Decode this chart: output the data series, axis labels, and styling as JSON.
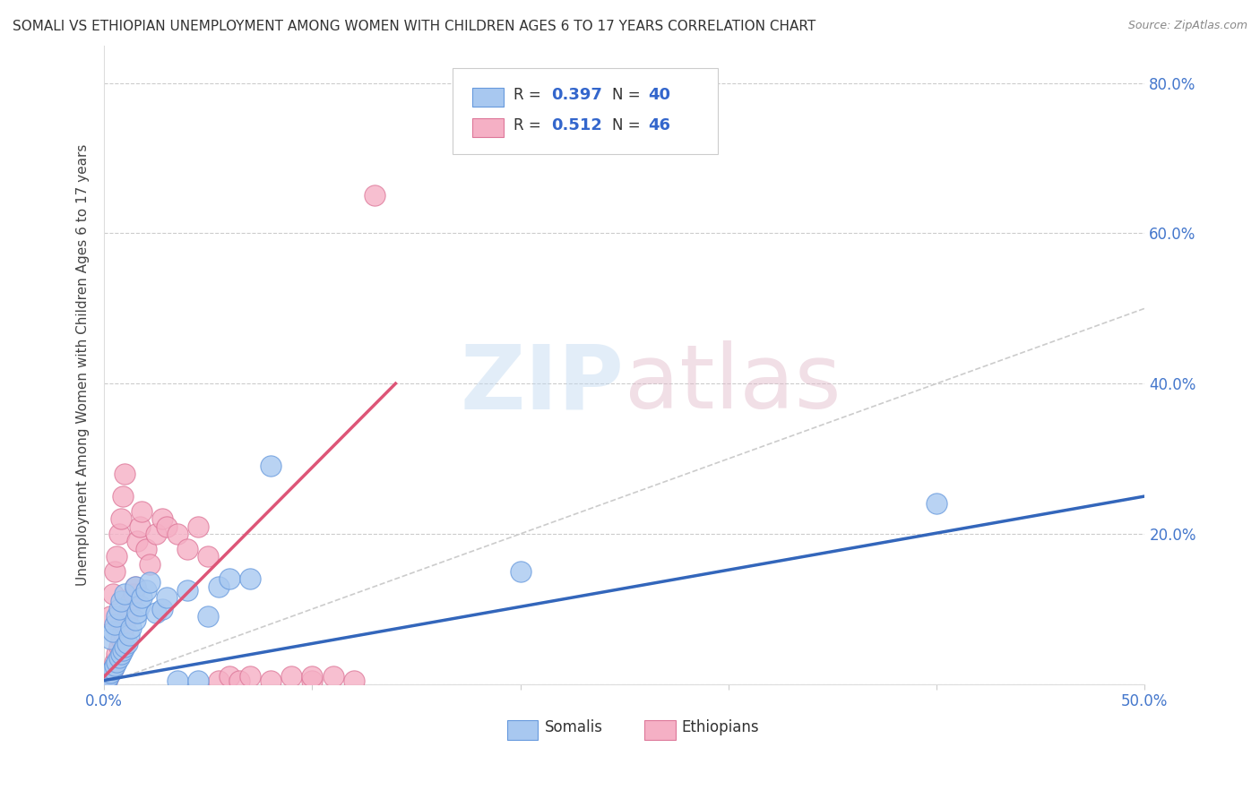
{
  "title": "SOMALI VS ETHIOPIAN UNEMPLOYMENT AMONG WOMEN WITH CHILDREN AGES 6 TO 17 YEARS CORRELATION CHART",
  "source": "Source: ZipAtlas.com",
  "ylabel": "Unemployment Among Women with Children Ages 6 to 17 years",
  "xlim": [
    0.0,
    0.5
  ],
  "ylim": [
    0.0,
    0.85
  ],
  "xticks": [
    0.0,
    0.1,
    0.2,
    0.3,
    0.4,
    0.5
  ],
  "xtick_labels": [
    "0.0%",
    "",
    "",
    "",
    "",
    "50.0%"
  ],
  "yticks": [
    0.0,
    0.2,
    0.4,
    0.6,
    0.8
  ],
  "ytick_labels_right": [
    "",
    "20.0%",
    "40.0%",
    "60.0%",
    "80.0%"
  ],
  "somali_color": "#a8c8f0",
  "somali_edge_color": "#6699dd",
  "somali_line_color": "#3366bb",
  "ethiopian_color": "#f5b0c5",
  "ethiopian_edge_color": "#dd7799",
  "ethiopian_line_color": "#dd5577",
  "ref_line_color": "#cccccc",
  "background_color": "#ffffff",
  "somali_x": [
    0.001,
    0.002,
    0.003,
    0.003,
    0.004,
    0.004,
    0.005,
    0.005,
    0.006,
    0.006,
    0.007,
    0.007,
    0.008,
    0.008,
    0.009,
    0.01,
    0.01,
    0.011,
    0.012,
    0.013,
    0.015,
    0.015,
    0.016,
    0.017,
    0.018,
    0.02,
    0.022,
    0.025,
    0.028,
    0.03,
    0.035,
    0.04,
    0.045,
    0.05,
    0.055,
    0.06,
    0.07,
    0.08,
    0.2,
    0.4
  ],
  "somali_y": [
    0.005,
    0.01,
    0.015,
    0.06,
    0.02,
    0.07,
    0.025,
    0.08,
    0.03,
    0.09,
    0.035,
    0.1,
    0.04,
    0.11,
    0.045,
    0.05,
    0.12,
    0.055,
    0.065,
    0.075,
    0.085,
    0.13,
    0.095,
    0.105,
    0.115,
    0.125,
    0.135,
    0.095,
    0.1,
    0.115,
    0.005,
    0.125,
    0.005,
    0.09,
    0.13,
    0.14,
    0.14,
    0.29,
    0.15,
    0.24
  ],
  "ethiopian_x": [
    0.001,
    0.002,
    0.003,
    0.003,
    0.004,
    0.004,
    0.005,
    0.005,
    0.006,
    0.006,
    0.007,
    0.007,
    0.008,
    0.008,
    0.009,
    0.009,
    0.01,
    0.01,
    0.011,
    0.012,
    0.013,
    0.014,
    0.015,
    0.016,
    0.017,
    0.018,
    0.02,
    0.022,
    0.025,
    0.028,
    0.03,
    0.035,
    0.04,
    0.045,
    0.05,
    0.055,
    0.06,
    0.065,
    0.07,
    0.08,
    0.09,
    0.1,
    0.11,
    0.12,
    0.13,
    0.1
  ],
  "ethiopian_y": [
    0.005,
    0.01,
    0.015,
    0.09,
    0.02,
    0.12,
    0.03,
    0.15,
    0.04,
    0.17,
    0.05,
    0.2,
    0.06,
    0.22,
    0.07,
    0.25,
    0.08,
    0.28,
    0.09,
    0.1,
    0.11,
    0.12,
    0.13,
    0.19,
    0.21,
    0.23,
    0.18,
    0.16,
    0.2,
    0.22,
    0.21,
    0.2,
    0.18,
    0.21,
    0.17,
    0.005,
    0.01,
    0.005,
    0.01,
    0.005,
    0.01,
    0.005,
    0.01,
    0.005,
    0.65,
    0.01
  ],
  "somali_trend": [
    0.005,
    0.25
  ],
  "somali_trend_x": [
    0.0,
    0.5
  ],
  "ethiopian_trend": [
    0.01,
    0.4
  ],
  "ethiopian_trend_x": [
    0.0,
    0.14
  ]
}
